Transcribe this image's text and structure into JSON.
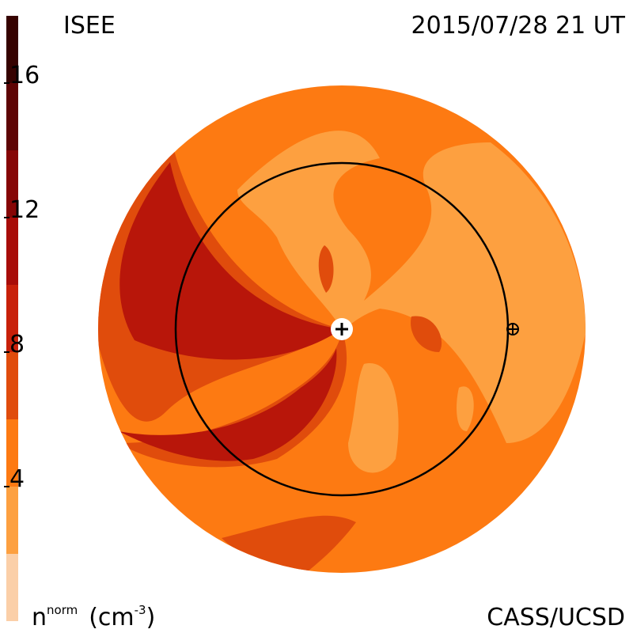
{
  "header": {
    "title": "ISEE",
    "datetime": "2015/07/28 21 UT",
    "credit": "CASS/UCSD"
  },
  "colorbar": {
    "label": {
      "symbol": "n",
      "superscript": "norm",
      "unit_open": "(cm",
      "unit_power": "-3",
      "unit_close": ")"
    },
    "lim": [
      0,
      18
    ],
    "ticks": [
      4,
      8,
      12,
      16
    ],
    "levels": [
      {
        "from": 0,
        "to": 2,
        "color": "#fbcfa8"
      },
      {
        "from": 2,
        "to": 4,
        "color": "#fda040"
      },
      {
        "from": 4,
        "to": 6,
        "color": "#fd7a12"
      },
      {
        "from": 6,
        "to": 8,
        "color": "#e04c0c"
      },
      {
        "from": 8,
        "to": 10,
        "color": "#c8200a"
      },
      {
        "from": 10,
        "to": 12,
        "color": "#a80c08"
      },
      {
        "from": 12,
        "to": 14,
        "color": "#860606"
      },
      {
        "from": 14,
        "to": 16,
        "color": "#5e0404"
      },
      {
        "from": 16,
        "to": 18,
        "color": "#360200"
      }
    ]
  }
}
